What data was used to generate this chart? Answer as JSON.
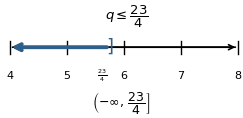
{
  "xmin": 4,
  "xmax": 8,
  "ticks": [
    4,
    5,
    6,
    7,
    8
  ],
  "inequality_value": 5.75,
  "line_color": "#2e5f8a",
  "number_line_color": "#000000",
  "fig_width": 2.43,
  "fig_height": 1.18,
  "dpi": 100
}
